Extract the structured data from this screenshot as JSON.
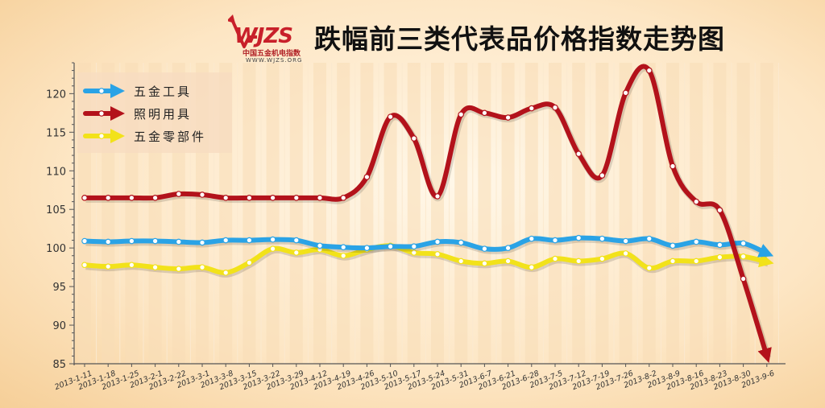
{
  "header": {
    "title": "跌幅前三类代表品价格指数走势图",
    "logo_text": "WJZS",
    "logo_cn": "中国五金机电指数",
    "logo_url": "WWW.WJZS.ORG"
  },
  "colors": {
    "series": [
      "#2aa3e6",
      "#b3121b",
      "#f2e21a"
    ],
    "grid": "#f7e4c6",
    "band": "#f7dcb6",
    "axis": "#555555",
    "logo_red": "#c8202a"
  },
  "chart_data": {
    "type": "line",
    "title": "跌幅前三类代表品价格指数走势图",
    "xlabel": "",
    "ylabel": "",
    "ylim": [
      85,
      124
    ],
    "yticks": [
      85,
      90,
      95,
      100,
      105,
      110,
      115,
      120
    ],
    "grid": true,
    "legend_position": "top-left",
    "categories": [
      "2013-1-11",
      "2013-1-18",
      "2013-1-25",
      "2013-2-1",
      "2013-2-22",
      "2013-3-1",
      "2013-3-8",
      "2013-3-15",
      "2013-3-22",
      "2013-3-29",
      "2013-4-12",
      "2013-4-19",
      "2013-4-26",
      "2013-5-10",
      "2013-5-17",
      "2013-5-24",
      "2013-5-31",
      "2013-6-7",
      "2013-6-21",
      "2013-6-28",
      "2013-7-5",
      "2013-7-12",
      "2013-7-19",
      "2013-7-26",
      "2013-8-2",
      "2013-8-9",
      "2013-8-16",
      "2013-8-23",
      "2013-8-30",
      "2013-9-6"
    ],
    "series": [
      {
        "name": "五金工具",
        "values": [
          100.9,
          100.8,
          100.9,
          100.9,
          100.8,
          100.7,
          101.0,
          101.0,
          101.1,
          101.0,
          100.3,
          100.1,
          100.0,
          100.2,
          100.2,
          100.8,
          100.7,
          99.9,
          100.0,
          101.2,
          101.0,
          101.3,
          101.2,
          100.9,
          101.2,
          100.3,
          100.8,
          100.4,
          100.6,
          99.3
        ]
      },
      {
        "name": "照明用具",
        "values": [
          106.5,
          106.5,
          106.5,
          106.5,
          107.0,
          106.9,
          106.5,
          106.5,
          106.5,
          106.5,
          106.5,
          106.5,
          109.2,
          117.0,
          114.2,
          106.7,
          117.3,
          117.5,
          116.9,
          118.1,
          118.2,
          112.2,
          109.4,
          120.1,
          123.0,
          110.6,
          106.0,
          104.9,
          96.0,
          86.0
        ]
      },
      {
        "name": "五金零部件",
        "values": [
          97.8,
          97.6,
          97.8,
          97.5,
          97.3,
          97.5,
          96.8,
          98.1,
          99.9,
          99.4,
          99.8,
          99.0,
          99.8,
          100.3,
          99.4,
          99.2,
          98.3,
          98.0,
          98.3,
          97.5,
          98.6,
          98.3,
          98.6,
          99.3,
          97.4,
          98.3,
          98.3,
          98.8,
          98.9,
          98.2
        ]
      }
    ]
  }
}
